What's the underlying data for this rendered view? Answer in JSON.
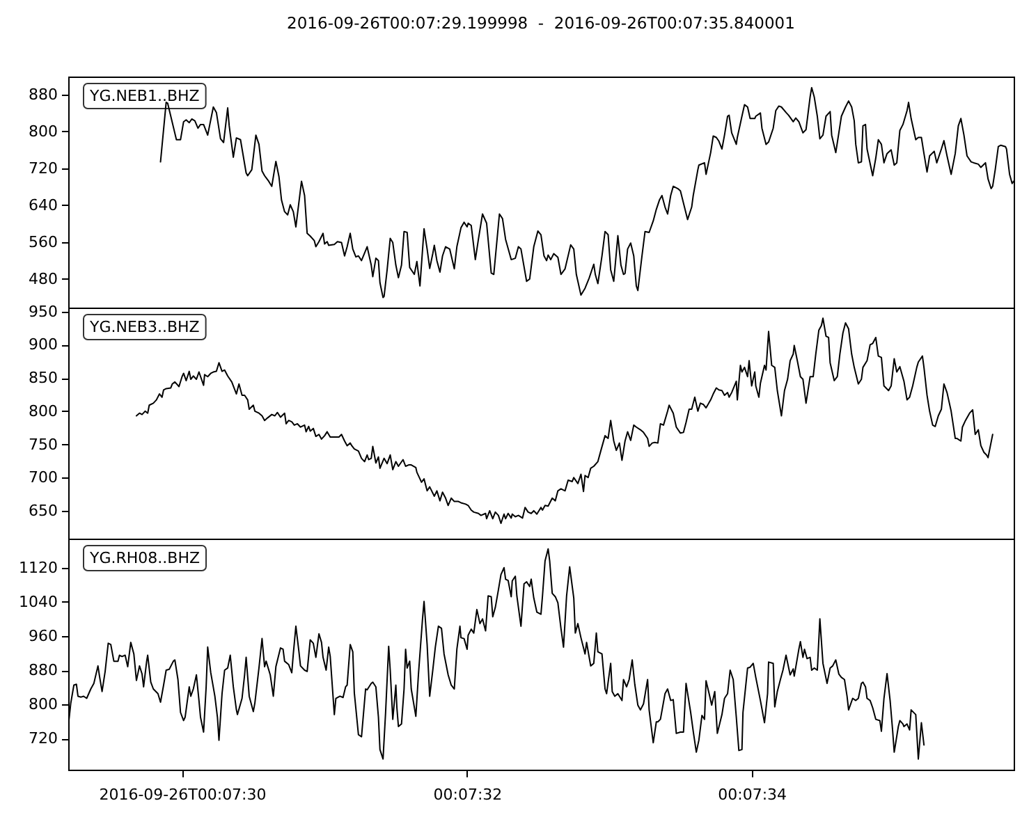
{
  "chart_data": [
    {
      "type": "line",
      "title": "2016-09-26T00:07:29.199998  -  2016-09-26T00:07:35.840001",
      "xlim": [
        0.124778,
        0.126622
      ],
      "tick_labels": "y",
      "ylim": [
        418,
        919
      ],
      "yticks": [
        480,
        560,
        640,
        720,
        800,
        880
      ],
      "series": [
        {
          "name": "YG.NEB1..BHZ",
          "color": "#000000",
          "x": [
            0.124958,
            0.124969,
            0.124972,
            0.124989,
            0.124997,
            0.125003,
            0.125008,
            0.125014,
            0.125019,
            0.125025,
            0.125031,
            0.125036,
            0.125042,
            0.12505,
            0.125061,
            0.125067,
            0.125075,
            0.125081,
            0.125089,
            0.125092,
            0.1251,
            0.125106,
            0.125114,
            0.125125,
            0.125128,
            0.125136,
            0.125144,
            0.12515,
            0.125156,
            0.125161,
            0.125169,
            0.125175,
            0.125183,
            0.125189,
            0.125194,
            0.1252,
            0.125206,
            0.125211,
            0.125217,
            0.125222,
            0.125233,
            0.125239,
            0.125244,
            0.12525,
            0.125258,
            0.125261,
            0.125267,
            0.125275,
            0.125278,
            0.125283,
            0.125286,
            0.125297,
            0.125303,
            0.125311,
            0.125317,
            0.125322,
            0.125328,
            0.125333,
            0.125339,
            0.125344,
            0.12535,
            0.125361,
            0.125369,
            0.125372,
            0.125378,
            0.125383,
            0.125386,
            0.125392,
            0.125394,
            0.1254,
            0.125406,
            0.125411,
            0.125417,
            0.125422,
            0.125428,
            0.125433,
            0.125439,
            0.125444,
            0.125453,
            0.125458,
            0.125464,
            0.125472,
            0.125478,
            0.125483,
            0.125489,
            0.125492,
            0.125497,
            0.125503,
            0.125508,
            0.125514,
            0.125522,
            0.125531,
            0.125536,
            0.125544,
            0.12555,
            0.125556,
            0.125558,
            0.125564,
            0.125572,
            0.125578,
            0.125586,
            0.125594,
            0.125603,
            0.125608,
            0.125619,
            0.125625,
            0.125631,
            0.125642,
            0.12565,
            0.125656,
            0.125661,
            0.125672,
            0.125678,
            0.125686,
            0.125694,
            0.1257,
            0.125706,
            0.125711,
            0.125714,
            0.125719,
            0.125725,
            0.125733,
            0.125739,
            0.125747,
            0.125758,
            0.125764,
            0.125769,
            0.125778,
            0.125786,
            0.125794,
            0.125803,
            0.125806,
            0.125811,
            0.125819,
            0.125825,
            0.125831,
            0.125836,
            0.125842,
            0.12585,
            0.125856,
            0.125861,
            0.125864,
            0.125869,
            0.125875,
            0.125881,
            0.125886,
            0.125889,
            0.125897,
            0.125903,
            0.125911,
            0.125919,
            0.125925,
            0.125931,
            0.125936,
            0.125942,
            0.125947,
            0.125953,
            0.125958,
            0.125967,
            0.125972,
            0.125981,
            0.125986,
            0.125994,
            0.125997,
            0.126006,
            0.126008,
            0.126019,
            0.126022,
            0.126031,
            0.126036,
            0.126042,
            0.126047,
            0.126053,
            0.126058,
            0.126064,
            0.126067,
            0.126072,
            0.126081,
            0.126083,
            0.126092,
            0.126097,
            0.126103,
            0.126108,
            0.126117,
            0.126119,
            0.126128,
            0.126131,
            0.126139,
            0.126144,
            0.126153,
            0.126158,
            0.126164,
            0.126169,
            0.126178,
            0.126183,
            0.126192,
            0.126197,
            0.126203,
            0.126211,
            0.126217,
            0.126225,
            0.126228,
            0.126233,
            0.126239,
            0.126244,
            0.12625,
            0.126256,
            0.126264,
            0.126267,
            0.126275,
            0.126281,
            0.126286,
            0.126294,
            0.1263,
            0.126306,
            0.126311,
            0.126314,
            0.126319,
            0.126325,
            0.126328,
            0.126333,
            0.126336,
            0.126347,
            0.126353,
            0.126358,
            0.126364,
            0.126369,
            0.126375,
            0.126383,
            0.126389,
            0.126394,
            0.1264,
            0.126406,
            0.126414,
            0.126417,
            0.126422,
            0.126431,
            0.126436,
            0.126442,
            0.126447,
            0.126453,
            0.126458,
            0.126467,
            0.126472,
            0.126481,
            0.126486,
            0.126492,
            0.1265,
            0.126508,
            0.126514,
            0.126519,
            0.126525,
            0.126531,
            0.126539,
            0.126544,
            0.126553,
            0.126558,
            0.126567,
            0.126572,
            0.126578,
            0.126581,
            0.126586,
            0.126592,
            0.126597,
            0.126606,
            0.126608,
            0.126614,
            0.126619,
            0.126622
          ],
          "values": [
            734,
            863,
            861,
            782,
            782,
            821,
            825,
            819,
            827,
            823,
            807,
            815,
            815,
            792,
            853,
            841,
            784,
            776,
            851,
            812,
            744,
            786,
            782,
            710,
            704,
            717,
            792,
            772,
            714,
            704,
            692,
            681,
            735,
            702,
            651,
            626,
            619,
            641,
            626,
            593,
            692,
            661,
            579,
            573,
            563,
            550,
            561,
            579,
            556,
            561,
            553,
            555,
            561,
            559,
            530,
            550,
            579,
            545,
            528,
            530,
            520,
            550,
            510,
            485,
            525,
            520,
            472,
            440,
            442,
            500,
            568,
            559,
            510,
            483,
            510,
            583,
            581,
            505,
            490,
            518,
            465,
            589,
            545,
            503,
            535,
            553,
            520,
            495,
            530,
            550,
            545,
            502,
            550,
            591,
            603,
            593,
            601,
            596,
            522,
            566,
            621,
            601,
            493,
            490,
            621,
            611,
            566,
            522,
            525,
            550,
            545,
            475,
            480,
            550,
            584,
            576,
            530,
            520,
            532,
            522,
            535,
            527,
            490,
            502,
            554,
            545,
            490,
            445,
            460,
            482,
            512,
            490,
            470,
            530,
            583,
            576,
            500,
            475,
            574,
            510,
            490,
            492,
            545,
            558,
            530,
            465,
            455,
            530,
            583,
            581,
            606,
            631,
            651,
            661,
            636,
            621,
            661,
            681,
            676,
            671,
            631,
            609,
            636,
            661,
            717,
            727,
            732,
            707,
            754,
            790,
            787,
            779,
            762,
            792,
            833,
            835,
            797,
            772,
            787,
            833,
            858,
            853,
            828,
            828,
            833,
            840,
            807,
            772,
            777,
            807,
            845,
            855,
            853,
            841,
            835,
            821,
            829,
            821,
            797,
            804,
            875,
            895,
            875,
            833,
            784,
            792,
            833,
            843,
            792,
            754,
            797,
            833,
            853,
            866,
            853,
            823,
            772,
            732,
            734,
            812,
            815,
            762,
            704,
            742,
            782,
            772,
            732,
            752,
            760,
            727,
            732,
            802,
            815,
            845,
            863,
            828,
            782,
            787,
            787,
            752,
            712,
            747,
            757,
            732,
            762,
            780,
            747,
            707,
            752,
            812,
            828,
            792,
            747,
            734,
            732,
            729,
            722,
            732,
            697,
            676,
            681,
            717,
            767,
            770,
            767,
            762,
            707,
            687,
            692
          ]
        }
      ]
    },
    {
      "type": "line",
      "xlim": [
        0.124778,
        0.126622
      ],
      "tick_labels": "y",
      "ylim": [
        608,
        956
      ],
      "yticks": [
        650,
        700,
        750,
        800,
        850,
        900,
        950
      ],
      "series": [
        {
          "name": "YG.NEB3..BHZ",
          "color": "#000000",
          "x": [
            0.124911,
            0.124917,
            0.124922,
            0.124928,
            0.124933,
            0.124936,
            0.124944,
            0.12495,
            0.124956,
            0.124961,
            0.124964,
            0.124969,
            0.124978,
            0.124981,
            0.124986,
            0.124994,
            0.125,
            0.125003,
            0.125008,
            0.125014,
            0.125017,
            0.125022,
            0.125028,
            0.125033,
            0.125042,
            0.125044,
            0.12505,
            0.125056,
            0.125061,
            0.125067,
            0.125072,
            0.125078,
            0.125083,
            0.125089,
            0.125097,
            0.125106,
            0.125111,
            0.125117,
            0.125122,
            0.125128,
            0.125131,
            0.125139,
            0.125142,
            0.12515,
            0.125156,
            0.125161,
            0.125167,
            0.125175,
            0.125181,
            0.125186,
            0.125192,
            0.1252,
            0.125203,
            0.125208,
            0.125214,
            0.125219,
            0.125225,
            0.125231,
            0.125239,
            0.125242,
            0.125247,
            0.12525,
            0.125256,
            0.125261,
            0.125267,
            0.125272,
            0.125278,
            0.125283,
            0.125289,
            0.125297,
            0.125306,
            0.125311,
            0.125317,
            0.125322,
            0.125328,
            0.125331,
            0.125336,
            0.125344,
            0.12535,
            0.125356,
            0.125361,
            0.125364,
            0.125369,
            0.125372,
            0.125378,
            0.125383,
            0.125386,
            0.125394,
            0.1254,
            0.125406,
            0.125411,
            0.125417,
            0.125422,
            0.125431,
            0.125436,
            0.125442,
            0.125447,
            0.125456,
            0.125458,
            0.125467,
            0.125472,
            0.125478,
            0.125483,
            0.125492,
            0.125497,
            0.125503,
            0.125508,
            0.125514,
            0.125519,
            0.125525,
            0.125531,
            0.125539,
            0.125544,
            0.125553,
            0.125558,
            0.125564,
            0.125569,
            0.125578,
            0.125583,
            0.125592,
            0.125594,
            0.1256,
            0.125606,
            0.125611,
            0.125617,
            0.125622,
            0.125628,
            0.125631,
            0.125636,
            0.125642,
            0.125644,
            0.12565,
            0.125656,
            0.125664,
            0.125669,
            0.125675,
            0.125681,
            0.125686,
            0.125692,
            0.1257,
            0.125703,
            0.125708,
            0.125714,
            0.125722,
            0.125728,
            0.125733,
            0.125739,
            0.125747,
            0.125753,
            0.125761,
            0.125764,
            0.125772,
            0.125778,
            0.125783,
            0.125786,
            0.125792,
            0.125797,
            0.125803,
            0.125811,
            0.125817,
            0.125825,
            0.125831,
            0.125836,
            0.125842,
            0.125847,
            0.125853,
            0.125858,
            0.125864,
            0.125869,
            0.125875,
            0.125881,
            0.125886,
            0.125894,
            0.1259,
            0.125908,
            0.125911,
            0.125917,
            0.125922,
            0.125928,
            0.125933,
            0.125939,
            0.125947,
            0.12595,
            0.125958,
            0.125964,
            0.125972,
            0.125978,
            0.125983,
            0.125989,
            0.125994,
            0.126,
            0.126006,
            0.126011,
            0.126017,
            0.126022,
            0.126031,
            0.126036,
            0.126042,
            0.126047,
            0.126053,
            0.126058,
            0.126064,
            0.126067,
            0.126072,
            0.126081,
            0.126083,
            0.126089,
            0.126092,
            0.126097,
            0.126103,
            0.126106,
            0.126111,
            0.126117,
            0.126119,
            0.126125,
            0.126128,
            0.126136,
            0.126139,
            0.126144,
            0.12615,
            0.126156,
            0.126161,
            0.126169,
            0.126175,
            0.126181,
            0.126186,
            0.126192,
            0.126194,
            0.1262,
            0.126206,
            0.126211,
            0.126217,
            0.126225,
            0.126231,
            0.126236,
            0.126242,
            0.126247,
            0.12625,
            0.126256,
            0.126261,
            0.126264,
            0.126272,
            0.126278,
            0.126283,
            0.126289,
            0.126294,
            0.1263,
            0.126306,
            0.126311,
            0.126319,
            0.126325,
            0.126328,
            0.126336,
            0.126342,
            0.126347,
            0.126353,
            0.126358,
            0.126364,
            0.126369,
            0.126378,
            0.126383,
            0.126389,
            0.126394,
            0.1264,
            0.126408,
            0.126414,
            0.126419,
            0.126425,
            0.126433,
            0.126436,
            0.126444,
            0.126447,
            0.126453,
            0.126458,
            0.126464,
            0.126469,
            0.126475,
            0.126481,
            0.126486,
            0.126492,
            0.1265,
            0.126508,
            0.126511,
            0.126519,
            0.126522,
            0.126528,
            0.126536,
            0.126542,
            0.126547,
            0.126553,
            0.126558,
            0.126564,
            0.126569,
            0.126572,
            0.126581
          ],
          "values": [
            793,
            797,
            795,
            800,
            797,
            809,
            812,
            817,
            826,
            821,
            832,
            834,
            835,
            841,
            844,
            837,
            852,
            857,
            846,
            860,
            848,
            853,
            848,
            859,
            839,
            855,
            852,
            857,
            859,
            860,
            873,
            860,
            862,
            853,
            844,
            826,
            841,
            824,
            824,
            817,
            803,
            809,
            800,
            797,
            793,
            786,
            790,
            795,
            793,
            798,
            791,
            797,
            781,
            786,
            784,
            779,
            781,
            776,
            779,
            769,
            777,
            770,
            774,
            762,
            765,
            758,
            763,
            769,
            761,
            761,
            761,
            765,
            755,
            748,
            752,
            748,
            743,
            740,
            729,
            724,
            734,
            727,
            729,
            747,
            722,
            731,
            714,
            729,
            721,
            734,
            712,
            724,
            717,
            727,
            717,
            719,
            719,
            715,
            708,
            693,
            698,
            680,
            686,
            672,
            680,
            665,
            678,
            669,
            658,
            669,
            664,
            664,
            662,
            660,
            658,
            651,
            648,
            646,
            643,
            646,
            638,
            650,
            638,
            648,
            643,
            631,
            645,
            638,
            646,
            639,
            645,
            641,
            643,
            639,
            655,
            648,
            646,
            650,
            645,
            655,
            651,
            658,
            657,
            669,
            665,
            680,
            683,
            680,
            696,
            694,
            700,
            691,
            705,
            679,
            703,
            700,
            714,
            717,
            724,
            741,
            763,
            759,
            786,
            755,
            741,
            752,
            726,
            755,
            769,
            756,
            779,
            776,
            772,
            768,
            759,
            747,
            752,
            753,
            752,
            781,
            779,
            800,
            809,
            797,
            776,
            767,
            768,
            783,
            803,
            803,
            821,
            800,
            812,
            810,
            805,
            817,
            826,
            835,
            832,
            831,
            824,
            828,
            821,
            828,
            845,
            817,
            869,
            859,
            866,
            852,
            876,
            838,
            859,
            838,
            821,
            842,
            869,
            862,
            920,
            869,
            866,
            831,
            793,
            831,
            848,
            876,
            886,
            899,
            876,
            852,
            848,
            812,
            852,
            852,
            886,
            922,
            929,
            940,
            913,
            911,
            873,
            846,
            852,
            886,
            918,
            933,
            924,
            886,
            866,
            841,
            848,
            866,
            876,
            900,
            902,
            911,
            883,
            881,
            838,
            831,
            838,
            879,
            859,
            867,
            845,
            817,
            821,
            838,
            866,
            874,
            883,
            866,
            824,
            800,
            779,
            777,
            793,
            803,
            841,
            828,
            800,
            759,
            759,
            755,
            776,
            786,
            797,
            802,
            765,
            772,
            748,
            738,
            734,
            730,
            765
          ]
        }
      ]
    },
    {
      "type": "line",
      "xlim": [
        0.124778,
        0.126622
      ],
      "xticks": [
        {
          "value": 0.125,
          "label": "2016-09-26T00:07:30"
        },
        {
          "value": 0.125556,
          "label": "00:07:32"
        },
        {
          "value": 0.126111,
          "label": "00:07:34"
        }
      ],
      "ylim": [
        647,
        1188
      ],
      "yticks": [
        720,
        800,
        880,
        960,
        1040,
        1120
      ],
      "series": [
        {
          "name": "YG.RH08..BHZ",
          "color": "#000000",
          "x": [
            0.124778,
            0.124783,
            0.124789,
            0.124794,
            0.124797,
            0.124803,
            0.124808,
            0.124814,
            0.124822,
            0.124828,
            0.124836,
            0.124839,
            0.124844,
            0.12485,
            0.124856,
            0.124861,
            0.124867,
            0.124875,
            0.124878,
            0.124883,
            0.124889,
            0.124894,
            0.1249,
            0.124906,
            0.124911,
            0.124917,
            0.124922,
            0.124925,
            0.124931,
            0.124933,
            0.124939,
            0.124944,
            0.124953,
            0.124958,
            0.124964,
            0.124969,
            0.124975,
            0.124983,
            0.124986,
            0.124992,
            0.124997,
            0.125003,
            0.125006,
            0.125014,
            0.125017,
            0.125022,
            0.125028,
            0.125033,
            0.125036,
            0.125042,
            0.125047,
            0.12505,
            0.125056,
            0.125064,
            0.125069,
            0.125072,
            0.125078,
            0.125083,
            0.125089,
            0.125094,
            0.1251,
            0.125106,
            0.125108,
            0.125117,
            0.125122,
            0.125125,
            0.125131,
            0.125139,
            0.125142,
            0.12515,
            0.125156,
            0.125161,
            0.125164,
            0.125172,
            0.125178,
            0.125183,
            0.125192,
            0.125197,
            0.1252,
            0.125208,
            0.125214,
            0.125217,
            0.125222,
            0.125228,
            0.125231,
            0.125239,
            0.125244,
            0.12525,
            0.125256,
            0.125261,
            0.125267,
            0.125272,
            0.125275,
            0.125281,
            0.125286,
            0.125289,
            0.125297,
            0.1253,
            0.125308,
            0.125314,
            0.125319,
            0.125322,
            0.125328,
            0.125333,
            0.125336,
            0.125344,
            0.12535,
            0.125358,
            0.125361,
            0.125369,
            0.125372,
            0.125378,
            0.125383,
            0.125386,
            0.125392,
            0.125397,
            0.125403,
            0.125406,
            0.125411,
            0.125417,
            0.125419,
            0.125422,
            0.125428,
            0.125433,
            0.125436,
            0.125439,
            0.125444,
            0.125447,
            0.125456,
            0.125461,
            0.125469,
            0.125472,
            0.125478,
            0.125483,
            0.125489,
            0.125494,
            0.1255,
            0.125506,
            0.125511,
            0.125519,
            0.125525,
            0.125531,
            0.125536,
            0.125542,
            0.125544,
            0.12555,
            0.125556,
            0.125558,
            0.125564,
            0.125569,
            0.125575,
            0.125581,
            0.125586,
            0.125592,
            0.125597,
            0.125603,
            0.125606,
            0.125611,
            0.125617,
            0.125622,
            0.125628,
            0.125631,
            0.125636,
            0.125642,
            0.125644,
            0.12565,
            0.125653,
            0.125661,
            0.125667,
            0.125672,
            0.125678,
            0.125681,
            0.125686,
            0.125692,
            0.1257,
            0.125703,
            0.125708,
            0.125714,
            0.125717,
            0.125722,
            0.125728,
            0.125733,
            0.125739,
            0.125744,
            0.12575,
            0.125756,
            0.125764,
            0.125767,
            0.125772,
            0.125778,
            0.125786,
            0.125789,
            0.125797,
            0.125803,
            0.125808,
            0.125811,
            0.125819,
            0.125825,
            0.125828,
            0.125836,
            0.125839,
            0.125844,
            0.12585,
            0.125858,
            0.125861,
            0.125867,
            0.125872,
            0.125878,
            0.125883,
            0.125889,
            0.125894,
            0.1259,
            0.125908,
            0.125911,
            0.125919,
            0.125925,
            0.125928,
            0.125933,
            0.125942,
            0.125947,
            0.125953,
            0.125958,
            0.125964,
            0.125972,
            0.125978,
            0.125983,
            0.125992,
            0.125997,
            0.126003,
            0.126008,
            0.126014,
            0.126019,
            0.126022,
            0.126028,
            0.126033,
            0.126039,
            0.126044,
            0.126053,
            0.126058,
            0.126064,
            0.126069,
            0.126075,
            0.126081,
            0.126086,
            0.126092,
            0.126094,
            0.126103,
            0.126108,
            0.126114,
            0.126119,
            0.126128,
            0.126136,
            0.126142,
            0.126144,
            0.126153,
            0.126156,
            0.126161,
            0.126167,
            0.126172,
            0.126178,
            0.126186,
            0.126192,
            0.126194,
            0.126203,
            0.126206,
            0.126211,
            0.126214,
            0.126219,
            0.126225,
            0.126228,
            0.126233,
            0.126239,
            0.126244,
            0.12625,
            0.126258,
            0.126264,
            0.126269,
            0.126275,
            0.126281,
            0.126286,
            0.126292,
            0.126297,
            0.1263,
            0.126308,
            0.126314,
            0.126319,
            0.126325,
            0.126328,
            0.126333,
            0.126336,
            0.126342,
            0.126347,
            0.126353,
            0.126361,
            0.126364,
            0.126369,
            0.126375,
            0.126381,
            0.126386,
            0.126389,
            0.126397,
            0.1264,
            0.126406,
            0.126408,
            0.126414,
            0.126419,
            0.126422,
            0.126431,
            0.126436,
            0.126442,
            0.126447
          ],
          "values": [
            748,
            803,
            845,
            847,
            819,
            817,
            819,
            814,
            836,
            849,
            890,
            866,
            830,
            877,
            943,
            940,
            901,
            901,
            915,
            912,
            915,
            888,
            945,
            918,
            856,
            890,
            871,
            841,
            901,
            915,
            852,
            836,
            825,
            805,
            845,
            880,
            882,
            901,
            904,
            858,
            781,
            762,
            770,
            841,
            819,
            836,
            869,
            809,
            770,
            735,
            841,
            934,
            874,
            819,
            770,
            716,
            825,
            880,
            885,
            915,
            841,
            787,
            776,
            814,
            869,
            910,
            819,
            783,
            803,
            885,
            954,
            888,
            901,
            869,
            819,
            888,
            932,
            929,
            901,
            893,
            874,
            918,
            983,
            923,
            890,
            880,
            877,
            951,
            943,
            910,
            965,
            945,
            910,
            880,
            934,
            912,
            776,
            814,
            819,
            816,
            841,
            845,
            940,
            923,
            827,
            729,
            724,
            836,
            834,
            849,
            852,
            841,
            770,
            694,
            672,
            781,
            936,
            880,
            765,
            845,
            792,
            748,
            754,
            836,
            929,
            885,
            901,
            836,
            772,
            869,
            1000,
            1041,
            940,
            819,
            880,
            934,
            983,
            978,
            918,
            869,
            845,
            836,
            929,
            983,
            956,
            954,
            929,
            962,
            976,
            967,
            1022,
            989,
            1000,
            972,
            1054,
            1052,
            1005,
            1027,
            1068,
            1104,
            1120,
            1093,
            1090,
            1052,
            1089,
            1100,
            1054,
            983,
            1082,
            1087,
            1076,
            1093,
            1049,
            1016,
            1011,
            1054,
            1136,
            1164,
            1136,
            1060,
            1052,
            1038,
            978,
            934,
            1054,
            1122,
            1049,
            967,
            989,
            956,
            918,
            945,
            890,
            896,
            967,
            923,
            918,
            836,
            825,
            896,
            830,
            819,
            825,
            809,
            858,
            841,
            858,
            904,
            847,
            798,
            787,
            801,
            858,
            787,
            710,
            759,
            759,
            765,
            825,
            836,
            809,
            811,
            732,
            735,
            735,
            849,
            781,
            737,
            688,
            716,
            774,
            765,
            855,
            825,
            798,
            830,
            732,
            776,
            814,
            825,
            880,
            858,
            770,
            692,
            694,
            781,
            885,
            887,
            896,
            863,
            809,
            757,
            825,
            899,
            896,
            794,
            830,
            858,
            880,
            915,
            869,
            883,
            866,
            929,
            947,
            910,
            929,
            907,
            910,
            880,
            885,
            880,
            1000,
            896,
            849,
            885,
            890,
            904,
            871,
            863,
            858,
            819,
            787,
            814,
            809,
            814,
            849,
            852,
            841,
            814,
            809,
            792,
            765,
            762,
            737,
            814,
            872,
            809,
            737,
            688,
            748,
            762,
            754,
            748,
            754,
            740,
            787,
            776,
            672,
            757,
            705
          ]
        }
      ]
    }
  ]
}
